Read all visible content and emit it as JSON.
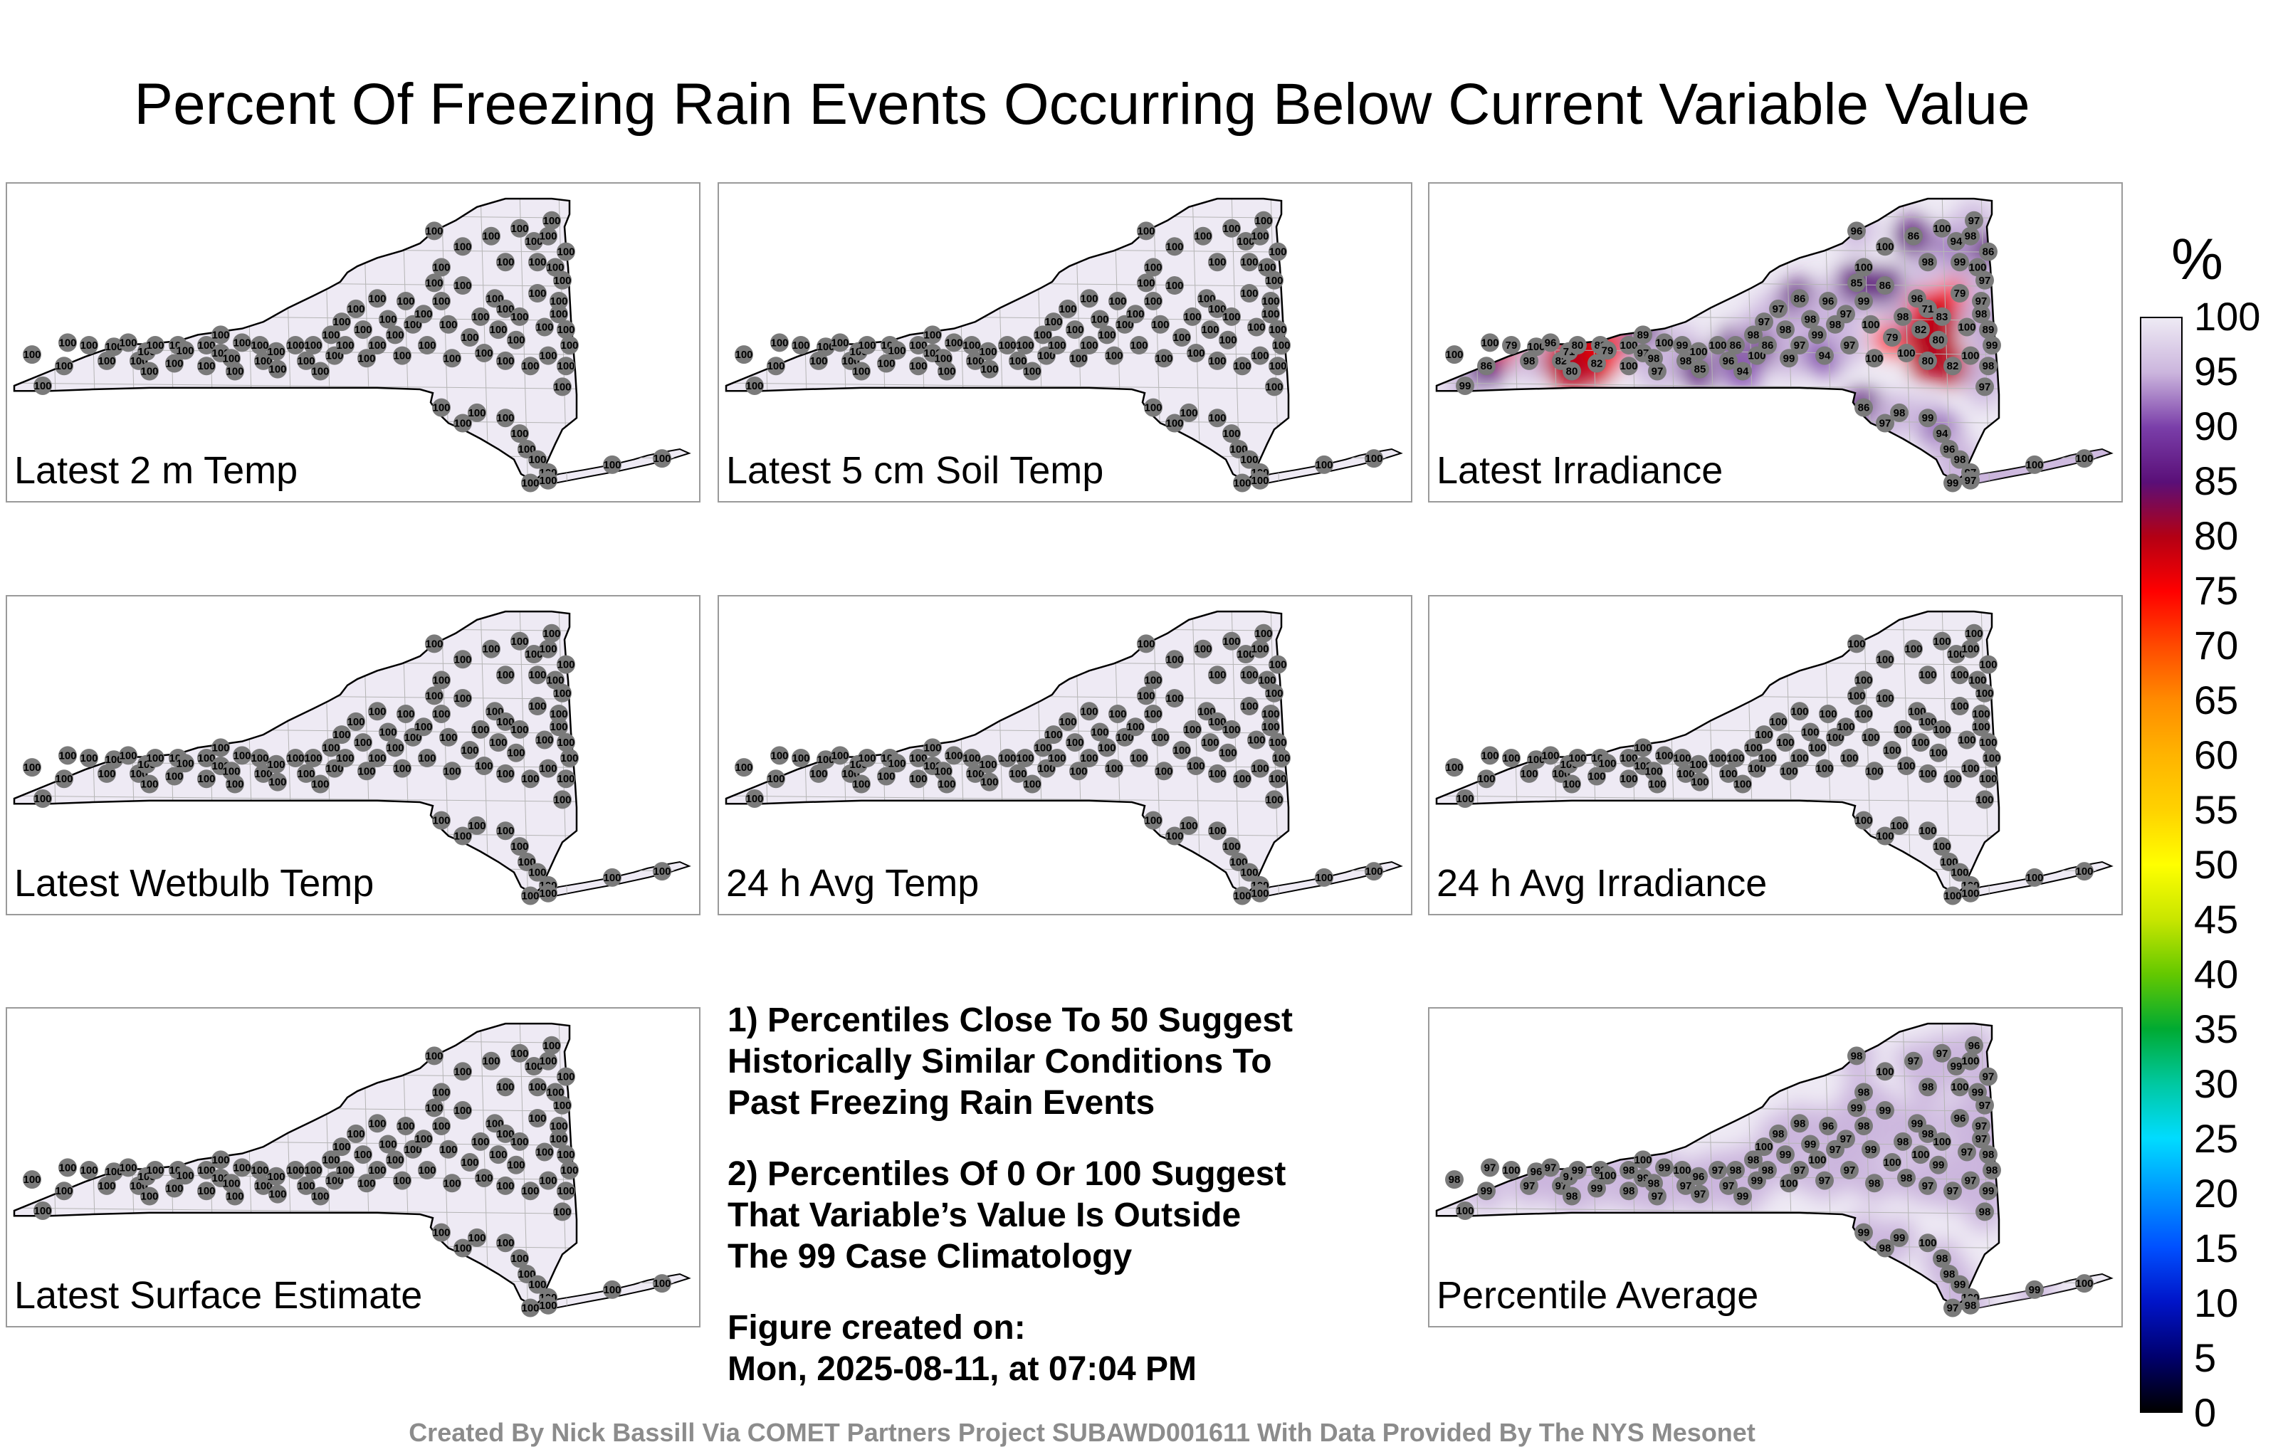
{
  "title": "Percent Of Freezing Rain Events Occurring Below Current Variable Value",
  "panels": [
    {
      "label": "Latest 2 m Temp",
      "mode": "uniform"
    },
    {
      "label": "Latest 5 cm Soil Temp",
      "mode": "uniform"
    },
    {
      "label": "Latest Irradiance",
      "mode": "irradiance"
    },
    {
      "label": "Latest Wetbulb Temp",
      "mode": "uniform"
    },
    {
      "label": "24 h Avg Temp",
      "mode": "uniform"
    },
    {
      "label": "24 h Avg Irradiance",
      "mode": "uniform"
    },
    {
      "label": "Latest Surface Estimate",
      "mode": "uniform"
    },
    {
      "label": "Percentile Average",
      "mode": "average"
    }
  ],
  "notes": {
    "line1": "1) Percentiles Close To 50 Suggest",
    "line2": "Historically Similar Conditions To",
    "line3": "Past Freezing Rain Events",
    "line4": "2) Percentiles Of 0 Or 100 Suggest",
    "line5": "That Variable’s Value Is Outside",
    "line6": "The 99 Case Climatology",
    "created_label": "Figure created on:",
    "created_value": "Mon, 2025-08-11, at 07:04 PM"
  },
  "footer": "Created By Nick Bassill Via COMET Partners Project SUBAWD001611 With Data Provided By The NYS Mesonet",
  "colorbar": {
    "unit": "%",
    "ticks": [
      "100",
      "95",
      "90",
      "85",
      "80",
      "75",
      "70",
      "65",
      "60",
      "55",
      "50",
      "45",
      "40",
      "35",
      "30",
      "25",
      "20",
      "15",
      "10",
      "5",
      "0"
    ],
    "colors": [
      "#eeeaf4",
      "#cbb5dd",
      "#7a3ea9",
      "#5a0f78",
      "#b40014",
      "#ff0000",
      "#ff4a00",
      "#ff8c00",
      "#ffb400",
      "#ffd200",
      "#ffff00",
      "#c8e600",
      "#64c800",
      "#00aa32",
      "#00c8a0",
      "#00dcff",
      "#0096ff",
      "#0050ff",
      "#0014c8",
      "#00006e",
      "#000000"
    ]
  },
  "station_values": {
    "uniform": "100",
    "irradiance": [
      "99",
      "100",
      "100",
      "86",
      "79",
      "98",
      "100",
      "96",
      "82",
      "71",
      "80",
      "80",
      "83",
      "82",
      "79",
      "100",
      "100",
      "97",
      "89",
      "98",
      "97",
      "100",
      "99",
      "98",
      "100",
      "85",
      "100",
      "96",
      "86",
      "94",
      "98",
      "100",
      "97",
      "86",
      "97",
      "98",
      "99",
      "86",
      "97",
      "98",
      "99",
      "94",
      "96",
      "98",
      "97",
      "97"
    ],
    "average": [
      "100",
      "98",
      "97",
      "99",
      "100",
      "97",
      "96",
      "97",
      "97",
      "97",
      "98",
      "99",
      "98",
      "99",
      "100",
      "98",
      "98",
      "99"
    ]
  }
}
